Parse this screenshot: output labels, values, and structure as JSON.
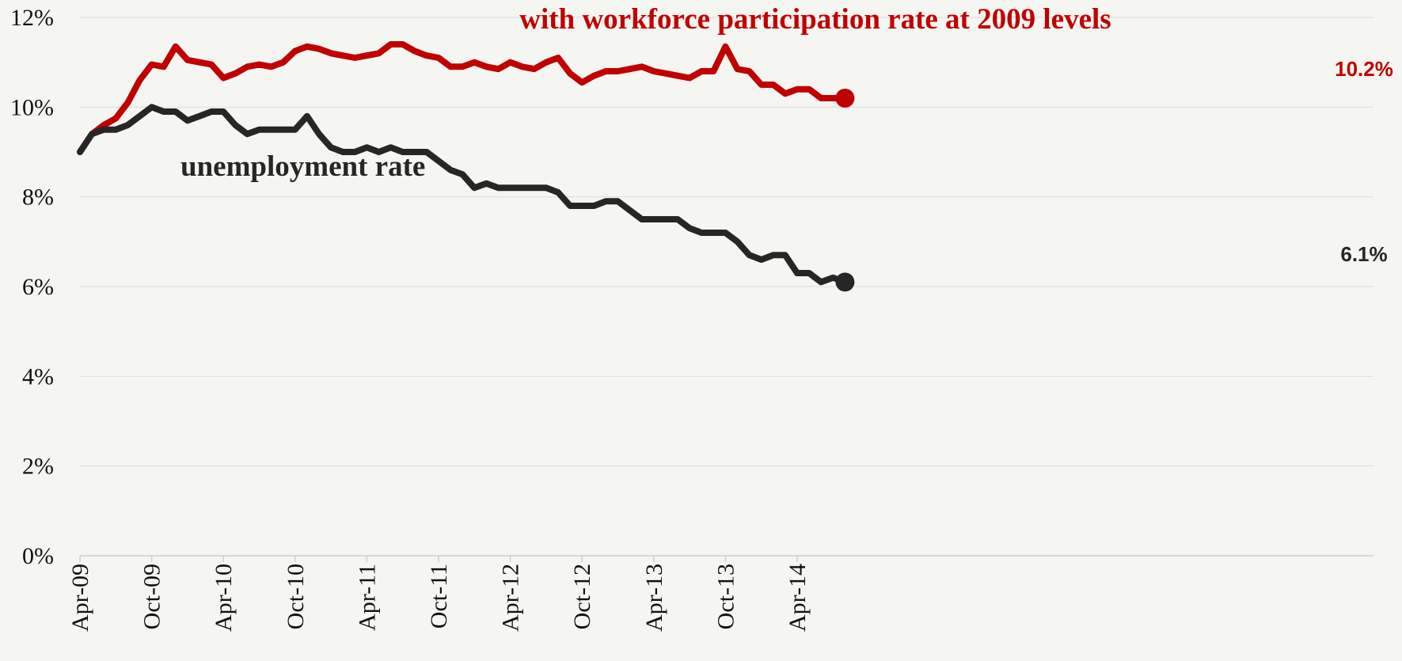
{
  "chart_data": {
    "type": "line",
    "x": [
      "Apr-09",
      "May-09",
      "Jun-09",
      "Jul-09",
      "Aug-09",
      "Sep-09",
      "Oct-09",
      "Nov-09",
      "Dec-09",
      "Jan-10",
      "Feb-10",
      "Mar-10",
      "Apr-10",
      "May-10",
      "Jun-10",
      "Jul-10",
      "Aug-10",
      "Sep-10",
      "Oct-10",
      "Nov-10",
      "Dec-10",
      "Jan-11",
      "Feb-11",
      "Mar-11",
      "Apr-11",
      "May-11",
      "Jun-11",
      "Jul-11",
      "Aug-11",
      "Sep-11",
      "Oct-11",
      "Nov-11",
      "Dec-11",
      "Jan-12",
      "Feb-12",
      "Mar-12",
      "Apr-12",
      "May-12",
      "Jun-12",
      "Jul-12",
      "Aug-12",
      "Sep-12",
      "Oct-12",
      "Nov-12",
      "Dec-12",
      "Jan-13",
      "Feb-13",
      "Mar-13",
      "Apr-13",
      "May-13",
      "Jun-13",
      "Jul-13",
      "Aug-13",
      "Sep-13",
      "Oct-13",
      "Nov-13",
      "Dec-13",
      "Jan-14",
      "Feb-14",
      "Mar-14",
      "Apr-14",
      "May-14",
      "Jun-14",
      "Jul-14",
      "Aug-14"
    ],
    "x_tick_labels": [
      "Apr-09",
      "Oct-09",
      "Apr-10",
      "Oct-10",
      "Apr-11",
      "Oct-11",
      "Apr-12",
      "Oct-12",
      "Apr-13",
      "Oct-13",
      "Apr-14"
    ],
    "y_tick_labels": [
      "0%",
      "2%",
      "4%",
      "6%",
      "8%",
      "10%",
      "12%"
    ],
    "ylim": [
      0,
      12
    ],
    "grid": "horizontal",
    "series": [
      {
        "name": "with workforce participation rate at 2009 levels",
        "color": "#c00000",
        "values": [
          9.0,
          9.4,
          9.6,
          9.75,
          10.1,
          10.6,
          10.95,
          10.9,
          11.35,
          11.05,
          11.0,
          10.95,
          10.65,
          10.75,
          10.9,
          10.95,
          10.9,
          11.0,
          11.25,
          11.35,
          11.3,
          11.2,
          11.15,
          11.1,
          11.15,
          11.2,
          11.4,
          11.4,
          11.25,
          11.15,
          11.1,
          10.9,
          10.9,
          11.0,
          10.9,
          10.85,
          11.0,
          10.9,
          10.85,
          11.0,
          11.1,
          10.75,
          10.55,
          10.7,
          10.8,
          10.8,
          10.85,
          10.9,
          10.8,
          10.75,
          10.7,
          10.65,
          10.8,
          10.8,
          11.35,
          10.85,
          10.8,
          10.5,
          10.5,
          10.3,
          10.4,
          10.4,
          10.2,
          10.2,
          10.2
        ],
        "end_label": "10.2%"
      },
      {
        "name": "unemployment rate",
        "color": "#262626",
        "values": [
          9.0,
          9.4,
          9.5,
          9.5,
          9.6,
          9.8,
          10.0,
          9.9,
          9.9,
          9.7,
          9.8,
          9.9,
          9.9,
          9.6,
          9.4,
          9.5,
          9.5,
          9.5,
          9.5,
          9.8,
          9.4,
          9.1,
          9.0,
          9.0,
          9.1,
          9.0,
          9.1,
          9.0,
          9.0,
          9.0,
          8.8,
          8.6,
          8.5,
          8.2,
          8.3,
          8.2,
          8.2,
          8.2,
          8.2,
          8.2,
          8.1,
          7.8,
          7.8,
          7.8,
          7.9,
          7.9,
          7.7,
          7.5,
          7.5,
          7.5,
          7.5,
          7.3,
          7.2,
          7.2,
          7.2,
          7.0,
          6.7,
          6.6,
          6.7,
          6.7,
          6.3,
          6.3,
          6.1,
          6.2,
          6.1
        ],
        "end_label": "6.1%"
      }
    ]
  }
}
